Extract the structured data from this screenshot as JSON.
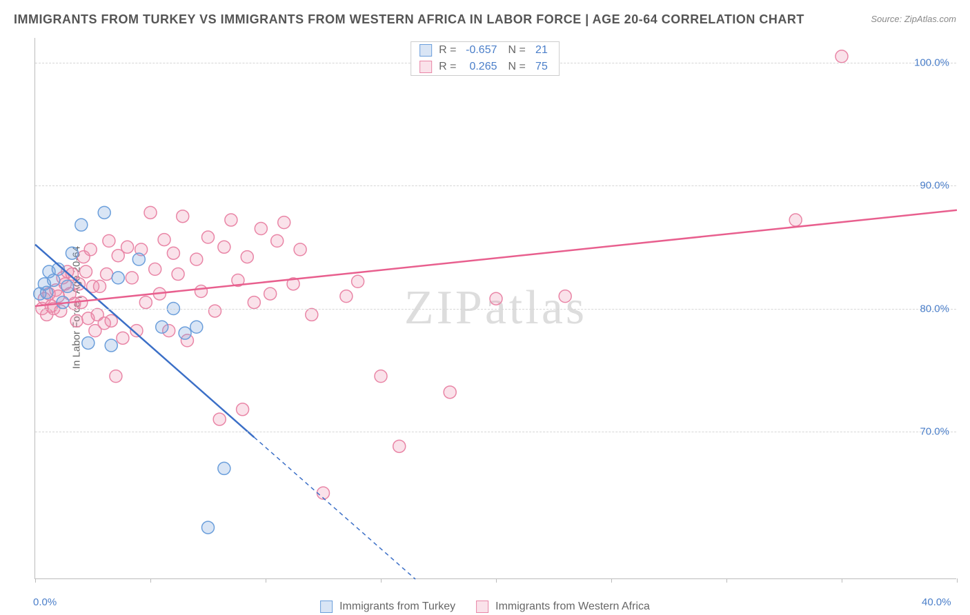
{
  "title": "IMMIGRANTS FROM TURKEY VS IMMIGRANTS FROM WESTERN AFRICA IN LABOR FORCE | AGE 20-64 CORRELATION CHART",
  "source": "Source: ZipAtlas.com",
  "y_axis_label": "In Labor Force | Age 20-64",
  "watermark": "ZIPatlas",
  "chart": {
    "type": "scatter",
    "xlim": [
      0,
      40
    ],
    "ylim": [
      58,
      102
    ],
    "x_ticks": [
      0,
      5,
      10,
      15,
      20,
      25,
      30,
      35,
      40
    ],
    "x_tick_labels": {
      "0": "0.0%",
      "40": "40.0%"
    },
    "y_gridlines": [
      70,
      80,
      90,
      100
    ],
    "y_tick_labels": {
      "70": "70.0%",
      "80": "80.0%",
      "90": "90.0%",
      "100": "100.0%"
    },
    "background_color": "#ffffff",
    "grid_color": "#d5d5d5",
    "axis_color": "#bbbbbb",
    "marker_radius": 9,
    "marker_stroke_width": 1.5,
    "line_width": 2.5
  },
  "series": [
    {
      "name": "Immigrants from Turkey",
      "color_fill": "rgba(120,160,220,0.28)",
      "color_stroke": "#6a9edb",
      "line_color": "#3b6fc7",
      "r_label": "R =",
      "r_value": "-0.657",
      "n_label": "N =",
      "n_value": "21",
      "trend": {
        "x1": 0,
        "y1": 85.2,
        "x2": 16.5,
        "y2": 58
      },
      "trend_solid_until_x": 9.5,
      "points": [
        [
          0.2,
          81.2
        ],
        [
          0.4,
          82.0
        ],
        [
          0.5,
          81.3
        ],
        [
          0.6,
          83.0
        ],
        [
          0.8,
          82.3
        ],
        [
          1.0,
          83.2
        ],
        [
          1.2,
          80.5
        ],
        [
          1.4,
          81.8
        ],
        [
          1.6,
          84.5
        ],
        [
          2.0,
          86.8
        ],
        [
          2.3,
          77.2
        ],
        [
          3.0,
          87.8
        ],
        [
          3.3,
          77.0
        ],
        [
          3.6,
          82.5
        ],
        [
          4.5,
          84.0
        ],
        [
          5.5,
          78.5
        ],
        [
          6.0,
          80.0
        ],
        [
          6.5,
          78.0
        ],
        [
          7.0,
          78.5
        ],
        [
          7.5,
          62.2
        ],
        [
          8.2,
          67.0
        ]
      ]
    },
    {
      "name": "Immigrants from Western Africa",
      "color_fill": "rgba(235,140,170,0.25)",
      "color_stroke": "#e985a6",
      "line_color": "#e85f8e",
      "r_label": "R =",
      "r_value": "0.265",
      "n_label": "N =",
      "n_value": "75",
      "trend": {
        "x1": 0,
        "y1": 80.2,
        "x2": 40,
        "y2": 88.0
      },
      "trend_solid_until_x": 40,
      "points": [
        [
          0.3,
          80.0
        ],
        [
          0.4,
          80.8
        ],
        [
          0.5,
          79.5
        ],
        [
          0.6,
          81.2
        ],
        [
          0.7,
          80.2
        ],
        [
          0.8,
          80.0
        ],
        [
          0.9,
          81.5
        ],
        [
          1.0,
          81.0
        ],
        [
          1.1,
          79.8
        ],
        [
          1.2,
          82.5
        ],
        [
          1.3,
          82.0
        ],
        [
          1.4,
          83.0
        ],
        [
          1.5,
          81.2
        ],
        [
          1.6,
          82.8
        ],
        [
          1.7,
          80.4
        ],
        [
          1.8,
          79.0
        ],
        [
          1.9,
          82.0
        ],
        [
          2.0,
          80.5
        ],
        [
          2.1,
          84.2
        ],
        [
          2.2,
          83.0
        ],
        [
          2.3,
          79.2
        ],
        [
          2.4,
          84.8
        ],
        [
          2.5,
          81.8
        ],
        [
          2.6,
          78.2
        ],
        [
          2.7,
          79.5
        ],
        [
          2.8,
          81.8
        ],
        [
          3.0,
          78.8
        ],
        [
          3.1,
          82.8
        ],
        [
          3.2,
          85.5
        ],
        [
          3.3,
          79.0
        ],
        [
          3.5,
          74.5
        ],
        [
          3.6,
          84.3
        ],
        [
          3.8,
          77.6
        ],
        [
          4.0,
          85.0
        ],
        [
          4.2,
          82.5
        ],
        [
          4.4,
          78.2
        ],
        [
          4.6,
          84.8
        ],
        [
          4.8,
          80.5
        ],
        [
          5.0,
          87.8
        ],
        [
          5.2,
          83.2
        ],
        [
          5.4,
          81.2
        ],
        [
          5.6,
          85.6
        ],
        [
          5.8,
          78.2
        ],
        [
          6.0,
          84.5
        ],
        [
          6.2,
          82.8
        ],
        [
          6.4,
          87.5
        ],
        [
          6.6,
          77.4
        ],
        [
          7.0,
          84.0
        ],
        [
          7.2,
          81.4
        ],
        [
          7.5,
          85.8
        ],
        [
          7.8,
          79.8
        ],
        [
          8.0,
          71.0
        ],
        [
          8.2,
          85.0
        ],
        [
          8.5,
          87.2
        ],
        [
          8.8,
          82.3
        ],
        [
          9.0,
          71.8
        ],
        [
          9.2,
          84.2
        ],
        [
          9.5,
          80.5
        ],
        [
          9.8,
          86.5
        ],
        [
          10.2,
          81.2
        ],
        [
          10.5,
          85.5
        ],
        [
          10.8,
          87.0
        ],
        [
          11.2,
          82.0
        ],
        [
          11.5,
          84.8
        ],
        [
          12.0,
          79.5
        ],
        [
          12.5,
          65.0
        ],
        [
          13.5,
          81.0
        ],
        [
          14.0,
          82.2
        ],
        [
          15.0,
          74.5
        ],
        [
          15.8,
          68.8
        ],
        [
          18.0,
          73.2
        ],
        [
          20.0,
          80.8
        ],
        [
          23.0,
          81.0
        ],
        [
          33.0,
          87.2
        ],
        [
          35.0,
          100.5
        ]
      ]
    }
  ],
  "legend_bottom": [
    {
      "label": "Immigrants from Turkey",
      "fill": "rgba(120,160,220,0.28)",
      "stroke": "#6a9edb"
    },
    {
      "label": "Immigrants from Western Africa",
      "fill": "rgba(235,140,170,0.25)",
      "stroke": "#e985a6"
    }
  ]
}
